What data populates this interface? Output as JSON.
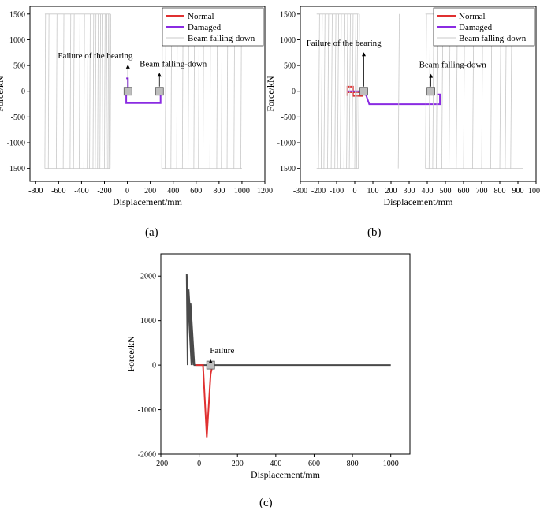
{
  "figure": {
    "captions": [
      "(a)",
      "(b)",
      "(c)"
    ]
  },
  "colors": {
    "normal": "#e03030",
    "damaged": "#8a2be2",
    "beam": "#c8c8c8",
    "panel_c_main": "#4a4a4a",
    "marker_fill": "#bdbdbd"
  },
  "chart_data": [
    {
      "panel": "(a)",
      "type": "line",
      "xlabel": "Displacement/mm",
      "ylabel": "Force/kN",
      "xlim": [
        -850,
        1200
      ],
      "ylim": [
        -1750,
        1650
      ],
      "xticks": [
        -800,
        -600,
        -400,
        -200,
        0,
        200,
        400,
        600,
        800,
        1000,
        1200
      ],
      "yticks": [
        -1500,
        -1000,
        -500,
        0,
        500,
        1000,
        1500
      ],
      "legend_position": "top-right",
      "series": [
        {
          "name": "Normal",
          "color_key": "normal",
          "points": []
        },
        {
          "name": "Damaged",
          "color_key": "damaged",
          "points": [
            [
              -10,
              250
            ],
            [
              5,
              250
            ],
            [
              5,
              -20
            ],
            [
              -10,
              -20
            ],
            [
              -10,
              -230
            ],
            [
              290,
              -230
            ],
            [
              290,
              0
            ]
          ]
        },
        {
          "name": "Beam falling-down",
          "color_key": "beam",
          "sweep_x": [
            -720,
            -690,
            -620,
            -560,
            -500,
            -470,
            -420,
            -380,
            -350,
            -330,
            -300,
            -280,
            -260,
            -240,
            -220,
            -200,
            -185,
            -170,
            -160,
            -150,
            300,
            330,
            380,
            430,
            480,
            530,
            580,
            620,
            660,
            720,
            780,
            820,
            870,
            930,
            990
          ],
          "sweep_range": [
            -1500,
            1500
          ],
          "flat_segments": [
            [
              -720,
              1500,
              -150,
              1500
            ],
            [
              -720,
              -1500,
              -150,
              -1500
            ],
            [
              300,
              1500,
              1000,
              1500
            ],
            [
              300,
              -1500,
              1000,
              -1500
            ]
          ]
        }
      ],
      "annotations": [
        {
          "text": "Failure of the bearing",
          "x": 5,
          "y": 0,
          "label_x": -280,
          "label_y": 580
        },
        {
          "text": "Beam falling-down",
          "x": 280,
          "y": 0,
          "label_x": 400,
          "label_y": 420
        }
      ]
    },
    {
      "panel": "(b)",
      "type": "line",
      "xlabel": "Displacement/mm",
      "ylabel": "Force/kN",
      "xlim": [
        -300,
        1000
      ],
      "ylim": [
        -1750,
        1650
      ],
      "xticks": [
        -300,
        -200,
        -100,
        0,
        100,
        200,
        300,
        400,
        500,
        600,
        700,
        800,
        900,
        1000
      ],
      "yticks": [
        -1500,
        -1000,
        -500,
        0,
        500,
        1000,
        1500
      ],
      "legend_position": "top-right",
      "series": [
        {
          "name": "Normal",
          "color_key": "normal",
          "points": [
            [
              -40,
              -90
            ],
            [
              -40,
              90
            ],
            [
              -10,
              90
            ],
            [
              -10,
              -90
            ],
            [
              40,
              -90
            ],
            [
              40,
              -20
            ],
            [
              -40,
              -20
            ]
          ]
        },
        {
          "name": "Damaged",
          "color_key": "damaged",
          "points": [
            [
              -40,
              0
            ],
            [
              40,
              0
            ],
            [
              40,
              -50
            ],
            [
              60,
              -50
            ],
            [
              80,
              -250
            ],
            [
              470,
              -250
            ],
            [
              470,
              -60
            ],
            [
              455,
              -60
            ]
          ]
        },
        {
          "name": "Beam falling-down",
          "color_key": "beam",
          "sweep_x": [
            -200,
            -185,
            -170,
            -150,
            -130,
            -110,
            -95,
            -80,
            -60,
            -45,
            -30,
            -15,
            0,
            10,
            20,
            240,
            390,
            410,
            430,
            450,
            480,
            520,
            560,
            600,
            650,
            700,
            750,
            800,
            830,
            860
          ],
          "sweep_range": [
            -1500,
            1500
          ],
          "flat_segments": [
            [
              -210,
              1500,
              20,
              1500
            ],
            [
              -210,
              -1500,
              20,
              -1500
            ],
            [
              390,
              1500,
              930,
              1500
            ],
            [
              390,
              -1500,
              930,
              -1500
            ]
          ]
        }
      ],
      "annotations": [
        {
          "text": "Failure of the bearing",
          "x": 50,
          "y": 0,
          "label_x": -60,
          "label_y": 820
        },
        {
          "text": "Beam falling-down",
          "x": 420,
          "y": 0,
          "label_x": 540,
          "label_y": 400
        }
      ]
    },
    {
      "panel": "(c)",
      "type": "line",
      "xlabel": "Displacement/mm",
      "ylabel": "Force/kN",
      "xlim": [
        -200,
        1100
      ],
      "ylim": [
        -2000,
        2500
      ],
      "xticks": [
        -200,
        0,
        200,
        400,
        600,
        800,
        1000
      ],
      "yticks": [
        -2000,
        -1000,
        0,
        1000,
        2000
      ],
      "series": [
        {
          "name": "",
          "color_key": "panel_c_main",
          "points": [
            [
              -60,
              0
            ],
            [
              -65,
              2050
            ],
            [
              -40,
              0
            ],
            [
              -55,
              1700
            ],
            [
              -30,
              0
            ],
            [
              -45,
              1400
            ],
            [
              -25,
              0
            ],
            [
              60,
              0
            ],
            [
              1000,
              0
            ]
          ]
        },
        {
          "name": "",
          "color_key": "normal",
          "points": [
            [
              -20,
              0
            ],
            [
              20,
              0
            ],
            [
              40,
              -1620
            ],
            [
              60,
              -200
            ],
            [
              70,
              0
            ]
          ]
        }
      ],
      "annotations": [
        {
          "text": "Failure",
          "x": 60,
          "y": 0,
          "label_x": 120,
          "label_y": 200
        }
      ]
    }
  ]
}
